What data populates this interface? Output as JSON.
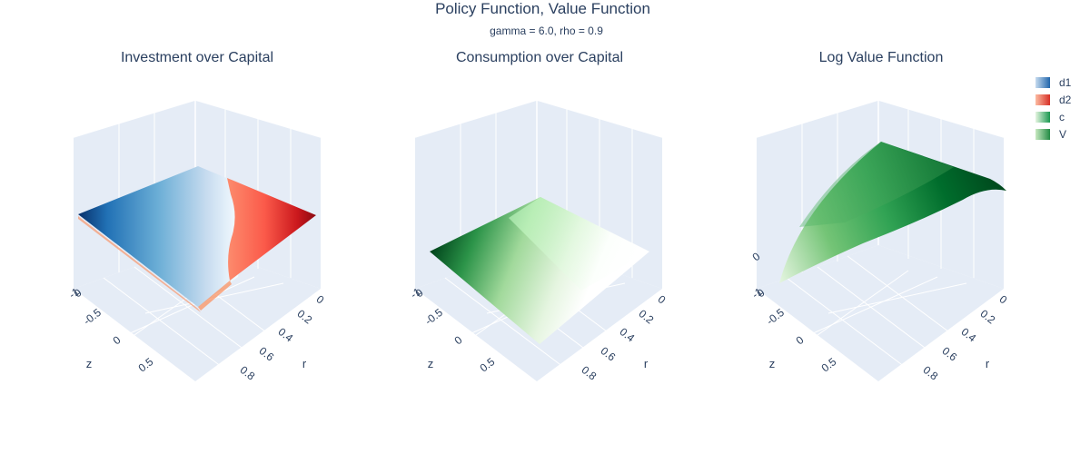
{
  "title": "Policy Function, Value Function",
  "subtitle": "gamma = 6.0, rho = 0.9",
  "legend": [
    {
      "name": "d1",
      "color": "#2166ac"
    },
    {
      "name": "d2",
      "color": "#d73027"
    },
    {
      "name": "c",
      "color": "#1a9850"
    },
    {
      "name": "V",
      "color": "#238b45"
    }
  ],
  "chart_data": [
    {
      "type": "surface",
      "title": "Investment over Capital",
      "series": [
        "d1",
        "d2"
      ],
      "z_axis": {
        "title": "z",
        "ticks": [
          "-1",
          "-0.5",
          "0",
          "0.5"
        ]
      },
      "r_axis": {
        "title": "r",
        "ticks": [
          "0",
          "0.2",
          "0.4",
          "0.6",
          "0.8"
        ]
      },
      "vertical_axis": {
        "ticks": [
          "0"
        ]
      },
      "grid": true
    },
    {
      "type": "surface",
      "title": "Consumption over Capital",
      "series": [
        "c"
      ],
      "z_axis": {
        "title": "z",
        "ticks": [
          "-1",
          "-0.5",
          "0",
          "0.5"
        ]
      },
      "r_axis": {
        "title": "r",
        "ticks": [
          "0",
          "0.2",
          "0.4",
          "0.6",
          "0.8"
        ]
      },
      "vertical_axis": {
        "ticks": [
          "0"
        ]
      },
      "grid": true
    },
    {
      "type": "surface",
      "title": "Log Value Function",
      "series": [
        "V"
      ],
      "z_axis": {
        "title": "z",
        "ticks": [
          "-1",
          "-0.5",
          "0",
          "0.5"
        ]
      },
      "r_axis": {
        "title": "r",
        "ticks": [
          "0",
          "0.2",
          "0.4",
          "0.6",
          "0.8"
        ]
      },
      "vertical_axis": {
        "ticks": [
          "0",
          "0"
        ]
      },
      "grid": true
    }
  ]
}
